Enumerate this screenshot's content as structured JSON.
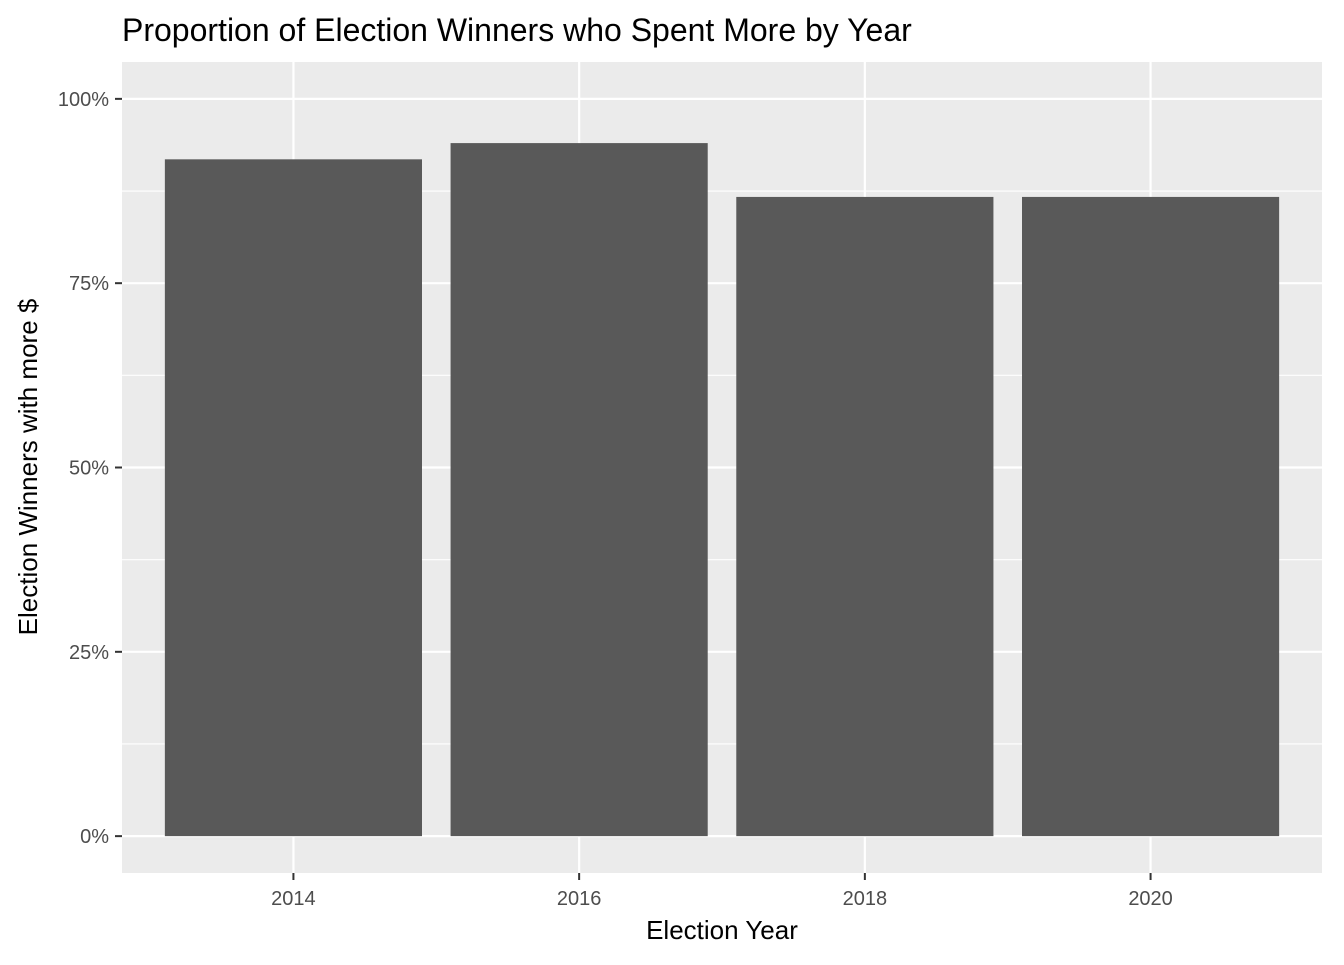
{
  "chart_data": {
    "type": "bar",
    "title": "Proportion of Election Winners who Spent More by Year",
    "xlabel": "Election Year",
    "ylabel": "Election Winners with more $",
    "categories": [
      "2014",
      "2016",
      "2018",
      "2020"
    ],
    "values": [
      0.918,
      0.94,
      0.867,
      0.867
    ],
    "ylim": [
      -0.05,
      1.05
    ],
    "yticks": [
      0,
      0.25,
      0.5,
      0.75,
      1.0
    ],
    "ytick_labels": [
      "0%",
      "25%",
      "50%",
      "75%",
      "100%"
    ],
    "grid": true,
    "legend": "none",
    "colors": {
      "panel_background": "#ebebeb",
      "grid": "#ffffff",
      "bar_fill": "#595959",
      "tick_text": "#4d4d4d",
      "tick_mark": "#333333"
    }
  }
}
